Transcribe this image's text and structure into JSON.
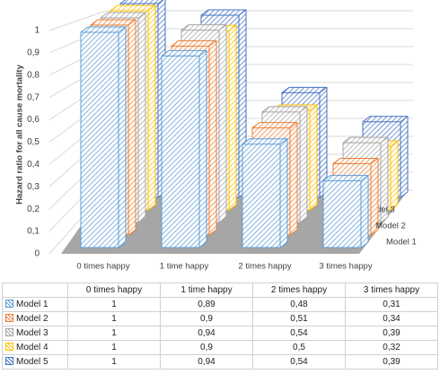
{
  "chart_data": {
    "type": "bar3d",
    "y_label": "Hazard ratio for all cause mortality",
    "categories": [
      "0 times happy",
      "1 time happy",
      "2 times happy",
      "3 times happy"
    ],
    "series": [
      {
        "name": "Model 1",
        "color": "#5b9bd5",
        "values": [
          1,
          0.89,
          0.48,
          0.31
        ],
        "value_labels": [
          "1",
          "0,89",
          "0,48",
          "0,31"
        ]
      },
      {
        "name": "Model 2",
        "color": "#ed7d31",
        "values": [
          1,
          0.9,
          0.51,
          0.34
        ],
        "value_labels": [
          "1",
          "0,9",
          "0,51",
          "0,34"
        ]
      },
      {
        "name": "Model 3",
        "color": "#a5a5a5",
        "values": [
          1,
          0.94,
          0.54,
          0.39
        ],
        "value_labels": [
          "1",
          "0,94",
          "0,54",
          "0,39"
        ]
      },
      {
        "name": "Model 4",
        "color": "#ffc000",
        "values": [
          1,
          0.9,
          0.5,
          0.32
        ],
        "value_labels": [
          "1",
          "0,9",
          "0,5",
          "0,32"
        ]
      },
      {
        "name": "Model 5",
        "color": "#4472c4",
        "values": [
          1,
          0.94,
          0.54,
          0.39
        ],
        "value_labels": [
          "1",
          "0,94",
          "0,54",
          "0,39"
        ]
      }
    ],
    "ylim": [
      0,
      1
    ],
    "yticks": [
      0,
      {
        "value": 0.1,
        "label": "0,1"
      },
      {
        "value": 0.2,
        "label": "0,2"
      },
      {
        "value": 0.3,
        "label": "0,3"
      },
      {
        "value": 0.4,
        "label": "0,4"
      },
      {
        "value": 0.5,
        "label": "0,5"
      },
      {
        "value": 0.6,
        "label": "0,6"
      },
      {
        "value": 0.7,
        "label": "0,7"
      },
      {
        "value": 0.8,
        "label": "0,8"
      },
      {
        "value": 0.9,
        "label": "0,9"
      },
      1
    ],
    "grid": true
  }
}
